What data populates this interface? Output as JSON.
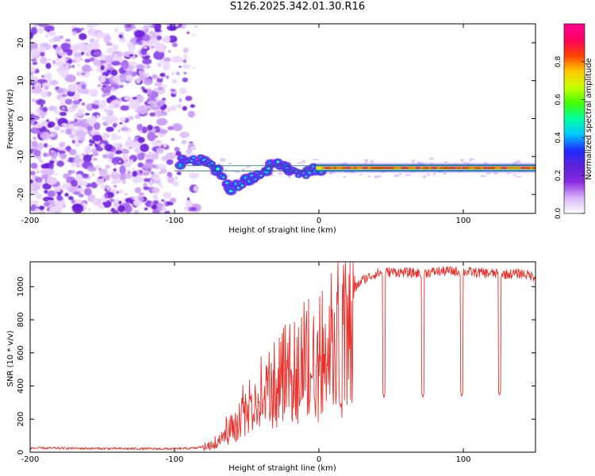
{
  "title": "S126.2025.342.01.30.R16",
  "chart_data": [
    {
      "type": "heatmap",
      "xlabel": "Height of straight line (km)",
      "ylabel": "Frequency (Hz)",
      "xlim": [
        -200,
        150
      ],
      "ylim": [
        -25,
        25
      ],
      "xticks": [
        -200,
        -100,
        0,
        100
      ],
      "yticks": [
        20,
        10,
        0,
        -10,
        -20
      ],
      "xtick_labels": [
        "-200",
        "-100",
        "0",
        "100"
      ],
      "ytick_labels": [
        "20",
        "10",
        "0",
        "-10",
        "-20"
      ],
      "noise_region_x": [
        -200,
        -85
      ],
      "tone_track": [
        {
          "x": -95,
          "y": -11
        },
        {
          "x": -85,
          "y": -11
        },
        {
          "x": -75,
          "y": -12
        },
        {
          "x": -68,
          "y": -15
        },
        {
          "x": -62,
          "y": -18
        },
        {
          "x": -55,
          "y": -18
        },
        {
          "x": -48,
          "y": -16
        },
        {
          "x": -42,
          "y": -15
        },
        {
          "x": -36,
          "y": -13
        },
        {
          "x": -30,
          "y": -12
        },
        {
          "x": -25,
          "y": -12
        },
        {
          "x": -18,
          "y": -14
        },
        {
          "x": -10,
          "y": -14.5
        },
        {
          "x": -4,
          "y": -13.5
        },
        {
          "x": 0,
          "y": -13
        },
        {
          "x": 150,
          "y": -13
        }
      ],
      "reference_lines_y": [
        -12.4,
        -13.8
      ],
      "colorbar": {
        "label": "Normalized spectral amplitude",
        "range": [
          0,
          1
        ],
        "ticks": [
          0.0,
          0.2,
          0.4,
          0.6,
          0.8
        ],
        "tick_labels": [
          "0.0",
          "0.2",
          "0.4",
          "0.6",
          "0.8"
        ],
        "colors": [
          "#ffffff",
          "#d8b4f8",
          "#8a2be2",
          "#5b1fd6",
          "#1f2bff",
          "#00c8ff",
          "#00ffa0",
          "#44ff00",
          "#c8ff00",
          "#ffc800",
          "#ff4000",
          "#ff0060",
          "#ff0090"
        ]
      }
    },
    {
      "type": "line",
      "xlabel": "Height of straight line (km)",
      "ylabel": "SNR (10 * v/v)",
      "xlim": [
        -200,
        150
      ],
      "ylim": [
        0,
        1150
      ],
      "xticks": [
        -200,
        -100,
        0,
        100
      ],
      "yticks": [
        0,
        200,
        400,
        600,
        800,
        1000
      ],
      "xtick_labels": [
        "-200",
        "-100",
        "0",
        "100"
      ],
      "ytick_labels": [
        "0",
        "200",
        "400",
        "600",
        "800",
        "1000"
      ],
      "color": "#e8302a",
      "series": [
        {
          "name": "SNR",
          "x": [
            -200,
            -150,
            -100,
            -85,
            -75,
            -70,
            -65,
            -60,
            -55,
            -50,
            -45,
            -40,
            -35,
            -30,
            -25,
            -20,
            -15,
            -10,
            -5,
            0,
            5,
            10,
            15,
            20,
            25,
            30,
            40,
            50,
            60,
            70,
            80,
            90,
            100,
            110,
            120,
            130,
            140,
            150
          ],
          "y": [
            25,
            22,
            20,
            25,
            45,
            80,
            130,
            180,
            230,
            290,
            320,
            380,
            430,
            480,
            520,
            560,
            600,
            650,
            680,
            720,
            760,
            800,
            850,
            920,
            990,
            1040,
            1080,
            1090,
            1085,
            1080,
            1090,
            1095,
            1090,
            1085,
            1080,
            1075,
            1080,
            1060
          ]
        }
      ],
      "dropouts": [
        {
          "x": 15,
          "y": 270
        },
        {
          "x": 45,
          "y": 330
        },
        {
          "x": 72,
          "y": 330
        },
        {
          "x": 99,
          "y": 335
        },
        {
          "x": 125,
          "y": 340
        }
      ]
    }
  ]
}
